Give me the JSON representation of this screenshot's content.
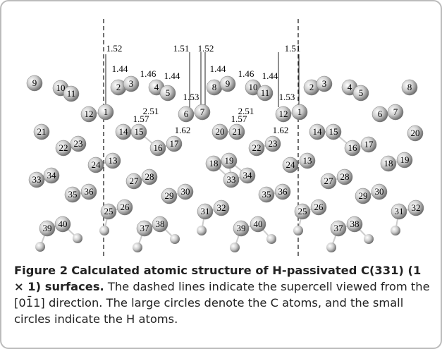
{
  "figure": {
    "atoms": [
      "9",
      "10",
      "11",
      "2",
      "3",
      "4",
      "5",
      "8",
      "9",
      "10",
      "11",
      "2",
      "3",
      "4",
      "5",
      "8",
      "12",
      "1",
      "6",
      "7",
      "12",
      "1",
      "6",
      "7",
      "21",
      "14",
      "15",
      "20",
      "21",
      "14",
      "15",
      "20",
      "22",
      "23",
      "16",
      "17",
      "22",
      "23",
      "16",
      "17",
      "24",
      "13",
      "18",
      "19",
      "24",
      "13",
      "18",
      "19",
      "33",
      "34",
      "27",
      "28",
      "33",
      "34",
      "27",
      "28",
      "35",
      "36",
      "29",
      "30",
      "35",
      "36",
      "29",
      "30",
      "25",
      "26",
      "31",
      "32",
      "25",
      "26",
      "31",
      "32",
      "39",
      "40",
      "37",
      "38",
      "39",
      "40",
      "37",
      "38"
    ],
    "bond_lengths": [
      "1.52",
      "1.44",
      "1.46",
      "1.44",
      "1.51",
      "1.52",
      "1.53",
      "1.44",
      "1.46",
      "1.44",
      "1.51",
      "1.53",
      "1.57",
      "2.51",
      "1.62",
      "1.57",
      "2.51",
      "1.62"
    ],
    "caption": {
      "label": "Figure 2",
      "title": "Calculated atomic structure of H-passivated C(331) (1 × 1) surfaces.",
      "text": "The dashed lines indicate the supercell viewed from the [01̄1] direction. The large circles denote the C atoms, and the small circles indicate the H atoms."
    }
  }
}
